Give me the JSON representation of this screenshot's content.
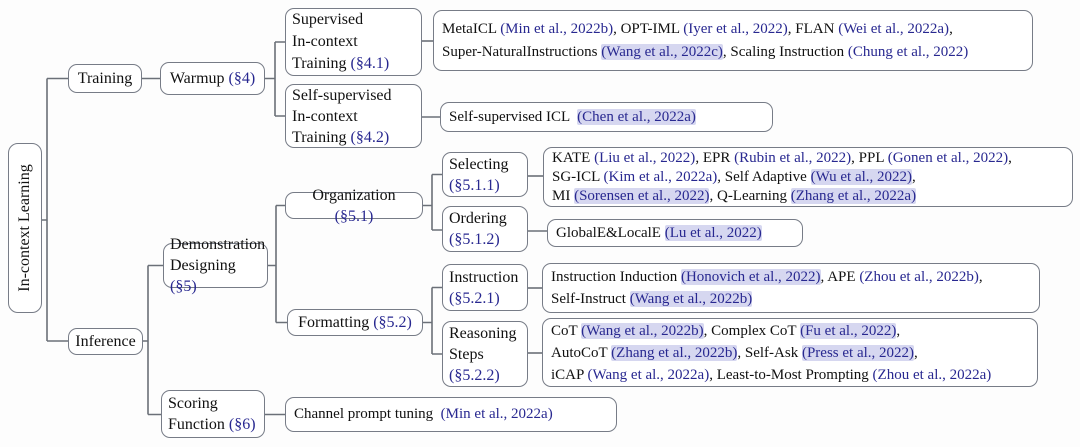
{
  "colors": {
    "citation_link": "#282890",
    "citation_highlight": "#d6d7f0",
    "box_border": "#777c87",
    "text": "#111111"
  },
  "root": {
    "label": "In-context Learning"
  },
  "nodes": {
    "training": [
      {
        "t": "Training"
      }
    ],
    "warmup": [
      {
        "t": "Warmup "
      },
      {
        "t": "(§4)",
        "c": "sec"
      }
    ],
    "sup_training": [
      {
        "t": "Supervised"
      },
      {
        "br": true
      },
      {
        "t": "In-context"
      },
      {
        "br": true
      },
      {
        "t": "Training "
      },
      {
        "t": "(§4.1)",
        "c": "sec"
      }
    ],
    "selfsup_training": [
      {
        "t": "Self-supervised"
      },
      {
        "br": true
      },
      {
        "t": "In-context"
      },
      {
        "br": true
      },
      {
        "t": "Training "
      },
      {
        "t": "(§4.2)",
        "c": "sec"
      }
    ],
    "inference": [
      {
        "t": "Inference"
      }
    ],
    "demonstration": [
      {
        "t": "Demonstration"
      },
      {
        "br": true
      },
      {
        "t": "Designing "
      },
      {
        "t": "(§5)",
        "c": "sec"
      }
    ],
    "organization": [
      {
        "t": "Organization "
      },
      {
        "t": "(§5.1)",
        "c": "sec"
      }
    ],
    "formatting": [
      {
        "t": "Formatting "
      },
      {
        "t": "(§5.2)",
        "c": "sec"
      }
    ],
    "selecting": [
      {
        "t": "Selecting"
      },
      {
        "br": true
      },
      {
        "t": "(§5.1.1)",
        "c": "sec"
      }
    ],
    "ordering": [
      {
        "t": "Ordering"
      },
      {
        "br": true
      },
      {
        "t": "(§5.1.2)",
        "c": "sec"
      }
    ],
    "instruction": [
      {
        "t": "Instruction"
      },
      {
        "br": true
      },
      {
        "t": "(§5.2.1)",
        "c": "sec"
      }
    ],
    "reasoning": [
      {
        "t": "Reasoning"
      },
      {
        "br": true
      },
      {
        "t": "Steps"
      },
      {
        "br": true
      },
      {
        "t": "(§5.2.2)",
        "c": "sec"
      }
    ],
    "scoring": [
      {
        "t": "Scoring"
      },
      {
        "br": true
      },
      {
        "t": "Function "
      },
      {
        "t": "(§6)",
        "c": "sec"
      }
    ]
  },
  "refs": {
    "supervised": [
      {
        "t": "MetaICL "
      },
      {
        "t": "(Min et al., 2022b)",
        "c": "cite"
      },
      {
        "t": ", OPT-IML "
      },
      {
        "t": "(Iyer et al., 2022)",
        "c": "cite"
      },
      {
        "t": ", FLAN "
      },
      {
        "t": "(Wei et al., 2022a)",
        "c": "cite"
      },
      {
        "t": ","
      },
      {
        "br": true
      },
      {
        "t": "Super-NaturalInstructions "
      },
      {
        "t": "(Wang et al., 2022c)",
        "c": "cite hl"
      },
      {
        "t": ", Scaling Instruction "
      },
      {
        "t": "(Chung et al., 2022)",
        "c": "cite"
      }
    ],
    "selfsup": [
      {
        "t": "Self-supervised ICL  "
      },
      {
        "t": "(Chen et al., 2022a)",
        "c": "cite hl"
      }
    ],
    "selecting": [
      {
        "t": "KATE "
      },
      {
        "t": "(Liu et al., 2022)",
        "c": "cite"
      },
      {
        "t": ", EPR "
      },
      {
        "t": "(Rubin et al., 2022)",
        "c": "cite"
      },
      {
        "t": ", PPL "
      },
      {
        "t": "(Gonen et al., 2022)",
        "c": "cite"
      },
      {
        "t": ","
      },
      {
        "br": true
      },
      {
        "t": "SG-ICL "
      },
      {
        "t": "(Kim et al., 2022a)",
        "c": "cite"
      },
      {
        "t": ", Self Adaptive "
      },
      {
        "t": "(Wu et al., 2022)",
        "c": "cite hl"
      },
      {
        "t": ","
      },
      {
        "br": true
      },
      {
        "t": "MI "
      },
      {
        "t": "(Sorensen et al., 2022)",
        "c": "cite hl"
      },
      {
        "t": ", Q-Learning "
      },
      {
        "t": "(Zhang et al., 2022a)",
        "c": "cite hl"
      }
    ],
    "ordering": [
      {
        "t": "GlobalE&LocalE "
      },
      {
        "t": "(Lu et al., 2022)",
        "c": "cite hl"
      }
    ],
    "instruction": [
      {
        "t": "Instruction Induction "
      },
      {
        "t": "(Honovich et al., 2022)",
        "c": "cite hl"
      },
      {
        "t": ", APE "
      },
      {
        "t": "(Zhou et al., 2022b)",
        "c": "cite"
      },
      {
        "t": ","
      },
      {
        "br": true
      },
      {
        "t": "Self-Instruct "
      },
      {
        "t": "(Wang et al., 2022b)",
        "c": "cite hl"
      }
    ],
    "reasoning": [
      {
        "t": "CoT "
      },
      {
        "t": "(Wang et al., 2022b)",
        "c": "cite hl"
      },
      {
        "t": ", Complex CoT "
      },
      {
        "t": "(Fu et al., 2022)",
        "c": "cite hl"
      },
      {
        "t": ","
      },
      {
        "br": true
      },
      {
        "t": "AutoCoT "
      },
      {
        "t": "(Zhang et al., 2022b)",
        "c": "cite hl"
      },
      {
        "t": ", Self-Ask "
      },
      {
        "t": "(Press et al., 2022)",
        "c": "cite hl"
      },
      {
        "t": ","
      },
      {
        "br": true
      },
      {
        "t": "iCAP "
      },
      {
        "t": "(Wang et al., 2022a)",
        "c": "cite"
      },
      {
        "t": ", Least-to-Most Prompting "
      },
      {
        "t": "(Zhou et al., 2022a)",
        "c": "cite"
      }
    ],
    "scoring": [
      {
        "t": "Channel prompt tuning  "
      },
      {
        "t": "(Min et al., 2022a)",
        "c": "cite"
      }
    ]
  }
}
